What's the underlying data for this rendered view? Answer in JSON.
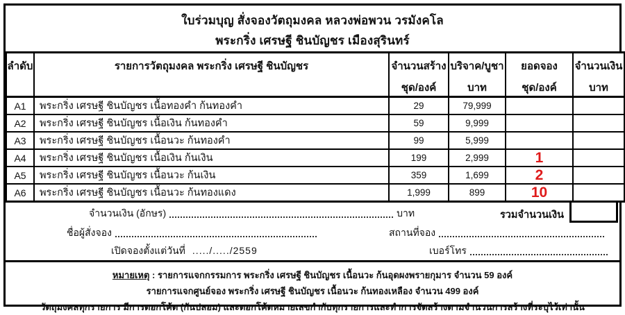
{
  "title": {
    "line1": "ใบร่วมบุญ สั่งจองวัตถุมงคล หลวงพ่อพวน วรมังคโล",
    "line2": "พระกริ่ง เศรษฐี ชินบัญชร  เมืองสุรินทร์"
  },
  "table": {
    "headers": {
      "order": "ลำดับ",
      "item": "รายการวัตถุมงคล พระกริ่ง เศรษฐี ชินบัญชร",
      "made_line1": "จำนวนสร้าง",
      "made_line2": "ชุด/องค์",
      "price_line1": "บริจาค/บูชา",
      "price_line2": "บาท",
      "reserved_line1": "ยอดจอง",
      "reserved_line2": "ชุด/องค์",
      "amount_line1": "จำนวนเงิน",
      "amount_line2": "บาท"
    },
    "rows": [
      {
        "no": "A1",
        "item": "พระกริ่ง เศรษฐี ชินบัญชร  เนื้อทองคำ ก้นทองคำ",
        "made": "29",
        "price": "79,999",
        "reserved": "",
        "amount": ""
      },
      {
        "no": "A2",
        "item": "พระกริ่ง เศรษฐี ชินบัญชร  เนื้อเงิน ก้นทองคำ",
        "made": "59",
        "price": "9,999",
        "reserved": "",
        "amount": ""
      },
      {
        "no": "A3",
        "item": "พระกริ่ง เศรษฐี ชินบัญชร  เนื้อนวะ ก้นทองคำ",
        "made": "99",
        "price": "5,999",
        "reserved": "",
        "amount": ""
      },
      {
        "no": "A4",
        "item": "พระกริ่ง เศรษฐี ชินบัญชร  เนื้อเงิน ก้นเงิน",
        "made": "199",
        "price": "2,999",
        "reserved": "1",
        "amount": ""
      },
      {
        "no": "A5",
        "item": "พระกริ่ง เศรษฐี ชินบัญชร  เนื้อนวะ ก้นเงิน",
        "made": "359",
        "price": "1,699",
        "reserved": "2",
        "amount": ""
      },
      {
        "no": "A6",
        "item": "พระกริ่ง เศรษฐี ชินบัญชร  เนื้อนวะ ก้นทองแดง",
        "made": "1,999",
        "price": "899",
        "reserved": "10",
        "amount": ""
      }
    ]
  },
  "summary": {
    "amount_text_label": "จำนวนเงิน (อักษร)",
    "baht_label": "บาท",
    "total_label": "รวมจำนวนเงิน",
    "name_label": "ชื่อผู้สั่งจอง",
    "place_label": "สถานที่จอง",
    "open_date_label": "เปิดจองตั้งแต่วันที่",
    "open_date_value": "...../...../2559",
    "phone_label": "เบอร์โทร"
  },
  "notes": {
    "heading": "หมายเหตุ",
    "line1": ": รายการแจกกรรมการ พระกริ่ง เศรษฐี ชินบัญชร เนื้อนวะ ก้นอุดผงพรายกุมาร  จำนวน 59 องค์",
    "line2": "รายการแจกศูนย์จอง  พระกริ่ง เศรษฐี ชินบัญชร  เนื้อนวะ ก้นทองเหลือง จำนวน 499 องค์",
    "line3": "วัตถุมงคลทุกรายการ มีการตอกโค้ด (กันปลอม) และตอกโค้ดหมายเลขกำกับทุกรายการและทำการจัดสร้างตามจำนวนการสร้างที่ระบุไว้เท่านั้น"
  },
  "colors": {
    "reserved_highlight": "#df1a1a",
    "text": "#111111",
    "border": "#000000"
  }
}
